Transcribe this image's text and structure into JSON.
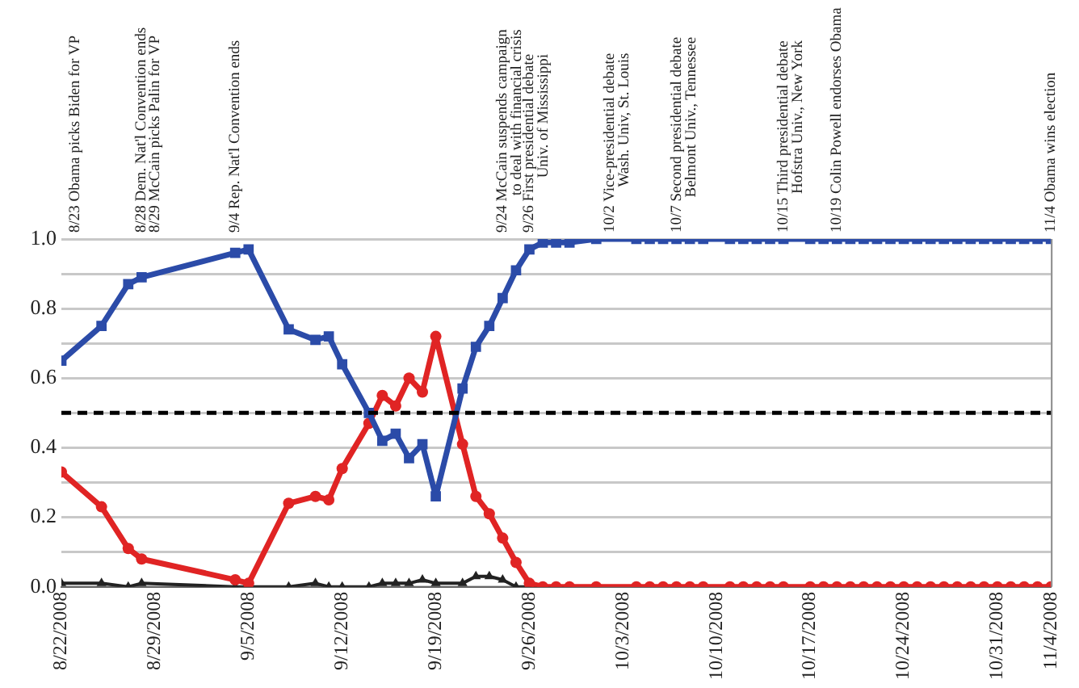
{
  "chart_data": {
    "type": "line",
    "xlim": [
      "2008-08-22",
      "2008-11-04"
    ],
    "xticks": [
      {
        "value": "2008-08-22",
        "label": "8/22/2008"
      },
      {
        "value": "2008-08-29",
        "label": "8/29/2008"
      },
      {
        "value": "2008-09-05",
        "label": "9/5/2008"
      },
      {
        "value": "2008-09-12",
        "label": "9/12/2008"
      },
      {
        "value": "2008-09-19",
        "label": "9/19/2008"
      },
      {
        "value": "2008-09-26",
        "label": "9/26/2008"
      },
      {
        "value": "2008-10-03",
        "label": "10/3/2008"
      },
      {
        "value": "2008-10-10",
        "label": "10/10/2008"
      },
      {
        "value": "2008-10-17",
        "label": "10/17/2008"
      },
      {
        "value": "2008-10-24",
        "label": "10/24/2008"
      },
      {
        "value": "2008-10-31",
        "label": "10/31/2008"
      },
      {
        "value": "2008-11-04",
        "label": "11/4/2008"
      }
    ],
    "ylim": [
      0,
      1
    ],
    "yticks": [
      {
        "value": 0,
        "label": "0.0"
      },
      {
        "value": 0.1,
        "label": null
      },
      {
        "value": 0.2,
        "label": "0.2"
      },
      {
        "value": 0.3,
        "label": null
      },
      {
        "value": 0.4,
        "label": "0.4"
      },
      {
        "value": 0.5,
        "label": null
      },
      {
        "value": 0.6,
        "label": "0.6"
      },
      {
        "value": 0.7,
        "label": null
      },
      {
        "value": 0.8,
        "label": "0.8"
      },
      {
        "value": 0.9,
        "label": null
      },
      {
        "value": 1,
        "label": "1.0"
      }
    ],
    "grid": "y",
    "legend": false,
    "line_style": "solid",
    "series": [
      {
        "color": "#2b4ba8",
        "marker": "square",
        "x": [
          "2008-08-22",
          "2008-08-25",
          "2008-08-27",
          "2008-08-28",
          "2008-09-04",
          "2008-09-05",
          "2008-09-08",
          "2008-09-10",
          "2008-09-11",
          "2008-09-12",
          "2008-09-14",
          "2008-09-15",
          "2008-09-16",
          "2008-09-17",
          "2008-09-18",
          "2008-09-19",
          "2008-09-21",
          "2008-09-22",
          "2008-09-23",
          "2008-09-24",
          "2008-09-25",
          "2008-09-26",
          "2008-09-27",
          "2008-09-28",
          "2008-09-29",
          "2008-10-01",
          "2008-10-04",
          "2008-10-05",
          "2008-10-06",
          "2008-10-07",
          "2008-10-08",
          "2008-10-09",
          "2008-10-11",
          "2008-10-12",
          "2008-10-13",
          "2008-10-14",
          "2008-10-15",
          "2008-10-17",
          "2008-10-18",
          "2008-10-19",
          "2008-10-20",
          "2008-10-21",
          "2008-10-22",
          "2008-10-23",
          "2008-10-24",
          "2008-10-25",
          "2008-10-26",
          "2008-10-27",
          "2008-10-28",
          "2008-10-29",
          "2008-10-30",
          "2008-10-31",
          "2008-11-01",
          "2008-11-02",
          "2008-11-03",
          "2008-11-04"
        ],
        "values": [
          0.65,
          0.75,
          0.87,
          0.89,
          0.96,
          0.97,
          0.74,
          0.71,
          0.72,
          0.64,
          0.5,
          0.42,
          0.44,
          0.37,
          0.41,
          0.26,
          0.57,
          0.69,
          0.75,
          0.83,
          0.91,
          0.97,
          0.99,
          0.99,
          0.99,
          1,
          1,
          1,
          1,
          1,
          1,
          1,
          1,
          1,
          1,
          1,
          1,
          1,
          1,
          1,
          1,
          1,
          1,
          1,
          1,
          1,
          1,
          1,
          1,
          1,
          1,
          1,
          1,
          1,
          1,
          1
        ]
      },
      {
        "color": "#e02424",
        "marker": "circle",
        "x": [
          "2008-08-22",
          "2008-08-25",
          "2008-08-27",
          "2008-08-28",
          "2008-09-04",
          "2008-09-05",
          "2008-09-08",
          "2008-09-10",
          "2008-09-11",
          "2008-09-12",
          "2008-09-14",
          "2008-09-15",
          "2008-09-16",
          "2008-09-17",
          "2008-09-18",
          "2008-09-19",
          "2008-09-21",
          "2008-09-22",
          "2008-09-23",
          "2008-09-24",
          "2008-09-25",
          "2008-09-26",
          "2008-09-27",
          "2008-09-28",
          "2008-09-29",
          "2008-10-01",
          "2008-10-04",
          "2008-10-05",
          "2008-10-06",
          "2008-10-07",
          "2008-10-08",
          "2008-10-09",
          "2008-10-11",
          "2008-10-12",
          "2008-10-13",
          "2008-10-14",
          "2008-10-15",
          "2008-10-17",
          "2008-10-18",
          "2008-10-19",
          "2008-10-20",
          "2008-10-21",
          "2008-10-22",
          "2008-10-23",
          "2008-10-24",
          "2008-10-25",
          "2008-10-26",
          "2008-10-27",
          "2008-10-28",
          "2008-10-29",
          "2008-10-30",
          "2008-10-31",
          "2008-11-01",
          "2008-11-02",
          "2008-11-03",
          "2008-11-04"
        ],
        "values": [
          0.33,
          0.23,
          0.11,
          0.08,
          0.02,
          0.01,
          0.24,
          0.26,
          0.25,
          0.34,
          0.47,
          0.55,
          0.52,
          0.6,
          0.56,
          0.72,
          0.41,
          0.26,
          0.21,
          0.14,
          0.07,
          0.01,
          0,
          0,
          0,
          0,
          0,
          0,
          0,
          0,
          0,
          0,
          0,
          0,
          0,
          0,
          0,
          0,
          0,
          0,
          0,
          0,
          0,
          0,
          0,
          0,
          0,
          0,
          0,
          0,
          0,
          0,
          0,
          0,
          0,
          0
        ]
      },
      {
        "color": "#222222",
        "marker": "triangle",
        "x": [
          "2008-08-22",
          "2008-08-25",
          "2008-08-27",
          "2008-08-28",
          "2008-09-04",
          "2008-09-05",
          "2008-09-08",
          "2008-09-10",
          "2008-09-11",
          "2008-09-12",
          "2008-09-14",
          "2008-09-15",
          "2008-09-16",
          "2008-09-17",
          "2008-09-18",
          "2008-09-19",
          "2008-09-21",
          "2008-09-22",
          "2008-09-23",
          "2008-09-24",
          "2008-09-25",
          "2008-09-26",
          "2008-09-27",
          "2008-09-28",
          "2008-09-29"
        ],
        "values": [
          0.01,
          0.01,
          0,
          0.01,
          0,
          0,
          0,
          0.01,
          0,
          0,
          0,
          0.01,
          0.01,
          0.01,
          0.02,
          0.01,
          0.01,
          0.03,
          0.03,
          0.02,
          0,
          0,
          0,
          0,
          0
        ]
      }
    ],
    "ref_lines": [
      {
        "axis": "y",
        "value": 0.5,
        "color": "#000000",
        "line_style": "dashed"
      }
    ],
    "annotations": [
      "8/23 Obama picks Biden for VP",
      "8/28 Dem. Nat'l Convention ends",
      "8/29 McCain picks Palin for VP",
      "9/4 Rep. Nat'l Convention ends",
      "9/24 McCain suspends campaign\nto deal with financial crisis",
      "9/26 First presidential debate\nUniv. of Mississippi",
      "10/2 Vice-presidential debate\nWash. Univ, St. Louis",
      "10/7 Second presidential debate\nBelmont Univ., Tennessee",
      "10/15 Third presidential debate\nHofstra Univ., New York",
      "10/19 Colin Powell endorses Obama",
      "11/4 Obama wins election"
    ]
  }
}
